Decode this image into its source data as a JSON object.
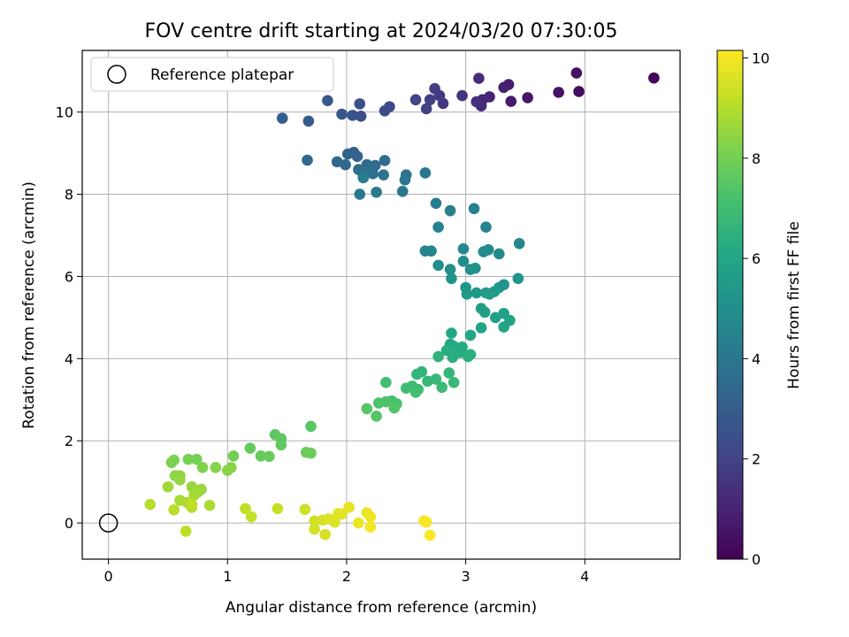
{
  "chart_data": {
    "type": "scatter",
    "title": "FOV centre drift starting at 2024/03/20 07:30:05",
    "xlabel": "Angular distance from reference (arcmin)",
    "ylabel": "Rotation from reference (arcmin)",
    "xlim": [
      -0.22,
      4.8
    ],
    "ylim": [
      -0.88,
      11.5
    ],
    "xticks": [
      0,
      1,
      2,
      3,
      4
    ],
    "yticks": [
      0,
      2,
      4,
      6,
      8,
      10
    ],
    "grid": true,
    "legend": {
      "placement": "upper-left",
      "entries": [
        "Reference platepar"
      ]
    },
    "reference_point": {
      "x": 0,
      "y": 0
    },
    "colorbar": {
      "label": "Hours from first FF file",
      "colormap": "viridis",
      "range": [
        0,
        10.15
      ],
      "ticks": [
        0,
        2,
        4,
        6,
        8,
        10
      ]
    },
    "points": [
      {
        "x": 4.58,
        "y": 10.83,
        "h": 0.1
      },
      {
        "x": 3.95,
        "y": 10.5,
        "h": 0.3
      },
      {
        "x": 3.93,
        "y": 10.95,
        "h": 0.4
      },
      {
        "x": 3.78,
        "y": 10.48,
        "h": 0.5
      },
      {
        "x": 3.52,
        "y": 10.35,
        "h": 0.6
      },
      {
        "x": 3.38,
        "y": 10.26,
        "h": 0.7
      },
      {
        "x": 3.36,
        "y": 10.67,
        "h": 0.8
      },
      {
        "x": 3.32,
        "y": 10.6,
        "h": 0.9
      },
      {
        "x": 3.2,
        "y": 10.37,
        "h": 1.0
      },
      {
        "x": 3.14,
        "y": 10.3,
        "h": 1.1
      },
      {
        "x": 3.13,
        "y": 10.15,
        "h": 1.2
      },
      {
        "x": 3.11,
        "y": 10.82,
        "h": 1.3
      },
      {
        "x": 3.09,
        "y": 10.25,
        "h": 1.4
      },
      {
        "x": 2.97,
        "y": 10.4,
        "h": 1.5
      },
      {
        "x": 2.81,
        "y": 10.21,
        "h": 1.6
      },
      {
        "x": 2.78,
        "y": 10.4,
        "h": 1.7
      },
      {
        "x": 2.74,
        "y": 10.57,
        "h": 1.8
      },
      {
        "x": 2.7,
        "y": 10.3,
        "h": 1.9
      },
      {
        "x": 2.67,
        "y": 10.08,
        "h": 2.0
      },
      {
        "x": 2.58,
        "y": 10.3,
        "h": 2.1
      },
      {
        "x": 2.36,
        "y": 10.13,
        "h": 2.2
      },
      {
        "x": 2.32,
        "y": 10.03,
        "h": 2.3
      },
      {
        "x": 2.12,
        "y": 9.9,
        "h": 2.4
      },
      {
        "x": 2.11,
        "y": 10.2,
        "h": 2.5
      },
      {
        "x": 2.05,
        "y": 9.92,
        "h": 2.6
      },
      {
        "x": 1.96,
        "y": 9.95,
        "h": 2.7
      },
      {
        "x": 1.84,
        "y": 10.28,
        "h": 2.8
      },
      {
        "x": 1.68,
        "y": 9.78,
        "h": 2.9
      },
      {
        "x": 1.46,
        "y": 9.85,
        "h": 3.0
      },
      {
        "x": 2.06,
        "y": 9.02,
        "h": 3.1
      },
      {
        "x": 2.09,
        "y": 8.92,
        "h": 3.2
      },
      {
        "x": 2.01,
        "y": 8.98,
        "h": 3.3
      },
      {
        "x": 1.99,
        "y": 8.72,
        "h": 3.35
      },
      {
        "x": 1.92,
        "y": 8.79,
        "h": 3.4
      },
      {
        "x": 1.67,
        "y": 8.83,
        "h": 3.45
      },
      {
        "x": 2.17,
        "y": 8.72,
        "h": 3.5
      },
      {
        "x": 2.24,
        "y": 8.7,
        "h": 3.55
      },
      {
        "x": 2.32,
        "y": 8.82,
        "h": 3.6
      },
      {
        "x": 2.1,
        "y": 8.6,
        "h": 3.65
      },
      {
        "x": 2.22,
        "y": 8.5,
        "h": 3.7
      },
      {
        "x": 2.14,
        "y": 8.45,
        "h": 3.75
      },
      {
        "x": 2.18,
        "y": 8.55,
        "h": 3.8
      },
      {
        "x": 2.31,
        "y": 8.47,
        "h": 3.85
      },
      {
        "x": 2.5,
        "y": 8.47,
        "h": 3.9
      },
      {
        "x": 2.49,
        "y": 8.35,
        "h": 3.95
      },
      {
        "x": 2.66,
        "y": 8.52,
        "h": 4.0
      },
      {
        "x": 2.47,
        "y": 8.07,
        "h": 4.05
      },
      {
        "x": 2.25,
        "y": 8.05,
        "h": 4.1
      },
      {
        "x": 2.11,
        "y": 8.0,
        "h": 4.15
      },
      {
        "x": 2.14,
        "y": 8.4,
        "h": 4.2
      },
      {
        "x": 2.75,
        "y": 7.78,
        "h": 4.3
      },
      {
        "x": 2.87,
        "y": 7.6,
        "h": 4.35
      },
      {
        "x": 3.07,
        "y": 7.65,
        "h": 4.4
      },
      {
        "x": 2.77,
        "y": 7.2,
        "h": 4.45
      },
      {
        "x": 3.17,
        "y": 7.2,
        "h": 4.5
      },
      {
        "x": 2.66,
        "y": 6.62,
        "h": 4.55
      },
      {
        "x": 2.71,
        "y": 6.62,
        "h": 4.6
      },
      {
        "x": 2.98,
        "y": 6.67,
        "h": 4.65
      },
      {
        "x": 3.45,
        "y": 6.8,
        "h": 4.7
      },
      {
        "x": 3.19,
        "y": 6.65,
        "h": 4.75
      },
      {
        "x": 3.15,
        "y": 6.6,
        "h": 4.8
      },
      {
        "x": 3.28,
        "y": 6.55,
        "h": 4.85
      },
      {
        "x": 2.98,
        "y": 6.37,
        "h": 4.9
      },
      {
        "x": 2.77,
        "y": 6.27,
        "h": 4.95
      },
      {
        "x": 2.87,
        "y": 6.17,
        "h": 5.0
      },
      {
        "x": 3.04,
        "y": 6.17,
        "h": 5.05
      },
      {
        "x": 3.08,
        "y": 6.2,
        "h": 5.1
      },
      {
        "x": 2.88,
        "y": 5.95,
        "h": 5.15
      },
      {
        "x": 3.44,
        "y": 5.95,
        "h": 5.2
      },
      {
        "x": 3.32,
        "y": 5.8,
        "h": 5.25
      },
      {
        "x": 3.28,
        "y": 5.73,
        "h": 5.3
      },
      {
        "x": 3.0,
        "y": 5.73,
        "h": 5.35
      },
      {
        "x": 3.09,
        "y": 5.6,
        "h": 5.4
      },
      {
        "x": 3.01,
        "y": 5.57,
        "h": 5.45
      },
      {
        "x": 3.17,
        "y": 5.6,
        "h": 5.5
      },
      {
        "x": 3.24,
        "y": 5.63,
        "h": 5.55
      },
      {
        "x": 3.2,
        "y": 5.57,
        "h": 5.6
      },
      {
        "x": 3.13,
        "y": 5.22,
        "h": 5.65
      },
      {
        "x": 3.16,
        "y": 5.13,
        "h": 5.7
      },
      {
        "x": 3.25,
        "y": 5.0,
        "h": 5.75
      },
      {
        "x": 3.32,
        "y": 5.1,
        "h": 5.8
      },
      {
        "x": 3.37,
        "y": 4.93,
        "h": 5.85
      },
      {
        "x": 3.32,
        "y": 4.77,
        "h": 5.9
      },
      {
        "x": 3.13,
        "y": 4.75,
        "h": 5.95
      },
      {
        "x": 3.04,
        "y": 4.57,
        "h": 6.0
      },
      {
        "x": 2.88,
        "y": 4.62,
        "h": 6.05
      },
      {
        "x": 2.87,
        "y": 4.35,
        "h": 6.1
      },
      {
        "x": 2.9,
        "y": 4.3,
        "h": 6.15
      },
      {
        "x": 2.97,
        "y": 4.28,
        "h": 6.2
      },
      {
        "x": 2.95,
        "y": 4.15,
        "h": 6.25
      },
      {
        "x": 2.84,
        "y": 4.2,
        "h": 6.3
      },
      {
        "x": 2.89,
        "y": 4.03,
        "h": 6.35
      },
      {
        "x": 3.02,
        "y": 4.05,
        "h": 6.4
      },
      {
        "x": 3.04,
        "y": 4.1,
        "h": 6.45
      },
      {
        "x": 2.77,
        "y": 4.05,
        "h": 6.5
      },
      {
        "x": 2.63,
        "y": 3.68,
        "h": 6.55
      },
      {
        "x": 2.59,
        "y": 3.62,
        "h": 6.6
      },
      {
        "x": 2.86,
        "y": 3.65,
        "h": 6.65
      },
      {
        "x": 2.75,
        "y": 3.5,
        "h": 6.7
      },
      {
        "x": 2.68,
        "y": 3.45,
        "h": 6.75
      },
      {
        "x": 2.9,
        "y": 3.42,
        "h": 6.8
      },
      {
        "x": 2.8,
        "y": 3.3,
        "h": 6.85
      },
      {
        "x": 2.55,
        "y": 3.33,
        "h": 6.9
      },
      {
        "x": 2.6,
        "y": 3.25,
        "h": 6.95
      },
      {
        "x": 2.5,
        "y": 3.28,
        "h": 7.0
      },
      {
        "x": 2.33,
        "y": 3.42,
        "h": 7.05
      },
      {
        "x": 2.58,
        "y": 3.18,
        "h": 7.1
      },
      {
        "x": 2.38,
        "y": 2.97,
        "h": 7.15
      },
      {
        "x": 2.42,
        "y": 2.9,
        "h": 7.2
      },
      {
        "x": 2.27,
        "y": 2.92,
        "h": 7.25
      },
      {
        "x": 2.33,
        "y": 2.95,
        "h": 7.3
      },
      {
        "x": 2.4,
        "y": 2.8,
        "h": 7.35
      },
      {
        "x": 2.25,
        "y": 2.6,
        "h": 7.4
      },
      {
        "x": 2.17,
        "y": 2.78,
        "h": 7.45
      },
      {
        "x": 1.7,
        "y": 2.35,
        "h": 7.5
      },
      {
        "x": 1.4,
        "y": 2.15,
        "h": 7.55
      },
      {
        "x": 1.45,
        "y": 2.05,
        "h": 7.6
      },
      {
        "x": 1.45,
        "y": 1.9,
        "h": 7.65
      },
      {
        "x": 1.19,
        "y": 1.82,
        "h": 7.7
      },
      {
        "x": 1.28,
        "y": 1.63,
        "h": 7.75
      },
      {
        "x": 1.35,
        "y": 1.62,
        "h": 7.8
      },
      {
        "x": 1.66,
        "y": 1.72,
        "h": 7.85
      },
      {
        "x": 1.7,
        "y": 1.7,
        "h": 7.9
      },
      {
        "x": 1.05,
        "y": 1.63,
        "h": 7.95
      },
      {
        "x": 0.74,
        "y": 1.55,
        "h": 8.0
      },
      {
        "x": 0.67,
        "y": 1.55,
        "h": 8.05
      },
      {
        "x": 0.55,
        "y": 1.53,
        "h": 8.1
      },
      {
        "x": 0.53,
        "y": 1.47,
        "h": 8.15
      },
      {
        "x": 0.79,
        "y": 1.35,
        "h": 8.2
      },
      {
        "x": 0.9,
        "y": 1.35,
        "h": 8.25
      },
      {
        "x": 1.0,
        "y": 1.28,
        "h": 8.3
      },
      {
        "x": 1.03,
        "y": 1.35,
        "h": 8.35
      },
      {
        "x": 0.56,
        "y": 1.15,
        "h": 8.4
      },
      {
        "x": 0.6,
        "y": 1.15,
        "h": 8.45
      },
      {
        "x": 0.6,
        "y": 1.05,
        "h": 8.5
      },
      {
        "x": 0.7,
        "y": 0.88,
        "h": 8.55
      },
      {
        "x": 0.78,
        "y": 0.82,
        "h": 8.6
      },
      {
        "x": 0.75,
        "y": 0.75,
        "h": 8.65
      },
      {
        "x": 0.5,
        "y": 0.88,
        "h": 8.7
      },
      {
        "x": 0.72,
        "y": 0.68,
        "h": 8.75
      },
      {
        "x": 0.6,
        "y": 0.55,
        "h": 8.8
      },
      {
        "x": 0.85,
        "y": 0.43,
        "h": 8.85
      },
      {
        "x": 0.66,
        "y": 0.5,
        "h": 8.9
      },
      {
        "x": 0.7,
        "y": 0.38,
        "h": 8.95
      },
      {
        "x": 0.35,
        "y": 0.45,
        "h": 9.0
      },
      {
        "x": 0.55,
        "y": 0.32,
        "h": 9.05
      },
      {
        "x": 0.65,
        "y": -0.2,
        "h": 9.1
      },
      {
        "x": 0.7,
        "y": 0.45,
        "h": 9.15
      },
      {
        "x": 1.15,
        "y": 0.35,
        "h": 9.2
      },
      {
        "x": 1.2,
        "y": 0.15,
        "h": 9.25
      },
      {
        "x": 1.42,
        "y": 0.35,
        "h": 9.3
      },
      {
        "x": 1.65,
        "y": 0.33,
        "h": 9.35
      },
      {
        "x": 1.73,
        "y": 0.05,
        "h": 9.4
      },
      {
        "x": 1.73,
        "y": -0.15,
        "h": 9.45
      },
      {
        "x": 1.8,
        "y": 0.07,
        "h": 9.5
      },
      {
        "x": 1.82,
        "y": -0.28,
        "h": 9.55
      },
      {
        "x": 1.85,
        "y": 0.1,
        "h": 9.6
      },
      {
        "x": 1.9,
        "y": 0.02,
        "h": 9.65
      },
      {
        "x": 1.93,
        "y": 0.23,
        "h": 9.7
      },
      {
        "x": 1.96,
        "y": 0.22,
        "h": 9.75
      },
      {
        "x": 2.02,
        "y": 0.38,
        "h": 9.8
      },
      {
        "x": 2.1,
        "y": 0.0,
        "h": 9.85
      },
      {
        "x": 2.17,
        "y": 0.25,
        "h": 9.9
      },
      {
        "x": 2.2,
        "y": 0.15,
        "h": 9.95
      },
      {
        "x": 2.2,
        "y": -0.1,
        "h": 10.0
      },
      {
        "x": 2.65,
        "y": 0.05,
        "h": 10.05
      },
      {
        "x": 2.67,
        "y": 0.02,
        "h": 10.08
      },
      {
        "x": 2.7,
        "y": -0.3,
        "h": 10.1
      }
    ]
  }
}
